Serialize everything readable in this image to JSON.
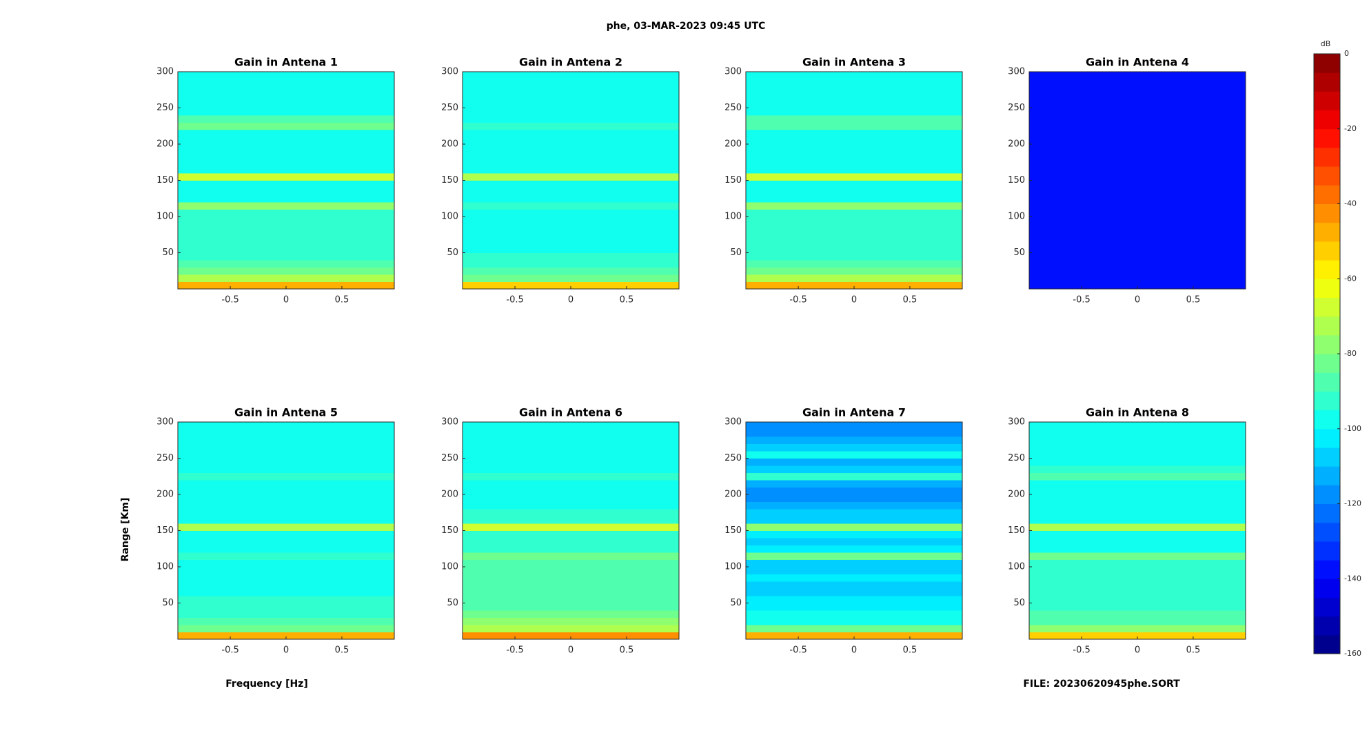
{
  "title": "phe, 03-MAR-2023 09:45 UTC",
  "ylabel": "Range [Km]",
  "xlabel": "Frequency [Hz]",
  "file_label": "FILE: 20230620945phe.SORT",
  "colorbar": {
    "label": "dB",
    "lim": [
      -160,
      0
    ],
    "ticks": [
      0,
      -20,
      -40,
      -60,
      -80,
      -100,
      -120,
      -140,
      -160
    ],
    "levels": 32,
    "colormap": [
      "#00007f",
      "#0000ff",
      "#007fff",
      "#00ffff",
      "#7fff7f",
      "#ffff00",
      "#ff7f00",
      "#ff0000",
      "#7f0000"
    ]
  },
  "chart_data": [
    {
      "type": "heatmap",
      "title": "Gain in Antena 1",
      "xlim": [
        -0.97,
        0.97
      ],
      "xticks": [
        -0.5,
        0,
        0.5
      ],
      "ylim": [
        0,
        300
      ],
      "yticks": [
        50,
        100,
        150,
        200,
        250,
        300
      ],
      "values": [
        -50,
        -75,
        -85,
        -90,
        -92,
        -94,
        -95,
        -95,
        -95,
        -95,
        -95,
        -78,
        -96,
        -96,
        -96,
        -70,
        -97,
        -97,
        -97,
        -97,
        -97,
        -97,
        -84,
        -86,
        -98,
        -98,
        -98,
        -98,
        -98,
        -98
      ]
    },
    {
      "type": "heatmap",
      "title": "Gain in Antena 2",
      "xlim": [
        -0.97,
        0.97
      ],
      "xticks": [
        -0.5,
        0,
        0.5
      ],
      "ylim": [
        0,
        300
      ],
      "yticks": [
        50,
        100,
        150,
        200,
        250,
        300
      ],
      "values": [
        -52,
        -82,
        -90,
        -93,
        -95,
        -96,
        -97,
        -97,
        -97,
        -97,
        -97,
        -92,
        -97,
        -97,
        -97,
        -72,
        -98,
        -98,
        -98,
        -98,
        -98,
        -98,
        -94,
        -96,
        -99,
        -99,
        -99,
        -99,
        -99,
        -99
      ]
    },
    {
      "type": "heatmap",
      "title": "Gain in Antena 3",
      "xlim": [
        -0.97,
        0.97
      ],
      "xticks": [
        -0.5,
        0,
        0.5
      ],
      "ylim": [
        0,
        300
      ],
      "yticks": [
        50,
        100,
        150,
        200,
        250,
        300
      ],
      "values": [
        -48,
        -74,
        -84,
        -90,
        -92,
        -94,
        -95,
        -95,
        -95,
        -95,
        -95,
        -80,
        -96,
        -96,
        -96,
        -66,
        -97,
        -97,
        -97,
        -97,
        -97,
        -97,
        -86,
        -90,
        -98,
        -98,
        -98,
        -98,
        -98,
        -98
      ]
    },
    {
      "type": "heatmap",
      "title": "Gain in Antena 4",
      "xlim": [
        -0.97,
        0.97
      ],
      "xticks": [
        -0.5,
        0,
        0.5
      ],
      "ylim": [
        0,
        300
      ],
      "yticks": [
        50,
        100,
        150,
        200,
        250,
        300
      ],
      "values": [
        -136,
        -138,
        -139,
        -139,
        -139,
        -139,
        -139,
        -139,
        -139,
        -139,
        -139,
        -139,
        -139,
        -139,
        -139,
        -138,
        -139,
        -139,
        -139,
        -139,
        -139,
        -139,
        -139,
        -139,
        -139,
        -139,
        -139,
        -139,
        -139,
        -139
      ]
    },
    {
      "type": "heatmap",
      "title": "Gain in Antena 5",
      "xlim": [
        -0.97,
        0.97
      ],
      "xticks": [
        -0.5,
        0,
        0.5
      ],
      "ylim": [
        0,
        300
      ],
      "yticks": [
        50,
        100,
        150,
        200,
        250,
        300
      ],
      "values": [
        -50,
        -84,
        -90,
        -93,
        -94,
        -95,
        -96,
        -96,
        -96,
        -96,
        -96,
        -94,
        -97,
        -97,
        -97,
        -74,
        -98,
        -98,
        -98,
        -98,
        -98,
        -98,
        -95,
        -97,
        -98,
        -98,
        -98,
        -98,
        -98,
        -98
      ]
    },
    {
      "type": "heatmap",
      "title": "Gain in Antena 6",
      "xlim": [
        -0.97,
        0.97
      ],
      "xticks": [
        -0.5,
        0,
        0.5
      ],
      "ylim": [
        0,
        300
      ],
      "yticks": [
        50,
        100,
        150,
        200,
        250,
        300
      ],
      "values": [
        -45,
        -72,
        -80,
        -84,
        -86,
        -87,
        -88,
        -88,
        -88,
        -89,
        -90,
        -84,
        -92,
        -93,
        -93,
        -70,
        -95,
        -95,
        -96,
        -96,
        -96,
        -96,
        -94,
        -96,
        -97,
        -97,
        -97,
        -97,
        -97,
        -97
      ]
    },
    {
      "type": "heatmap",
      "title": "Gain in Antena 7",
      "xlim": [
        -0.97,
        0.97
      ],
      "xticks": [
        -0.5,
        0,
        0.5
      ],
      "ylim": [
        0,
        300
      ],
      "yticks": [
        50,
        100,
        150,
        200,
        250,
        300
      ],
      "values": [
        -50,
        -82,
        -96,
        -100,
        -102,
        -104,
        -106,
        -106,
        -104,
        -106,
        -106,
        -82,
        -104,
        -106,
        -104,
        -80,
        -108,
        -110,
        -114,
        -116,
        -118,
        -112,
        -92,
        -106,
        -112,
        -100,
        -108,
        -114,
        -118,
        -116
      ]
    },
    {
      "type": "heatmap",
      "title": "Gain in Antena 8",
      "xlim": [
        -0.97,
        0.97
      ],
      "xticks": [
        -0.5,
        0,
        0.5
      ],
      "ylim": [
        0,
        300
      ],
      "yticks": [
        50,
        100,
        150,
        200,
        250,
        300
      ],
      "values": [
        -52,
        -76,
        -86,
        -90,
        -92,
        -94,
        -95,
        -95,
        -95,
        -95,
        -95,
        -84,
        -96,
        -96,
        -96,
        -72,
        -97,
        -97,
        -97,
        -97,
        -97,
        -97,
        -88,
        -92,
        -98,
        -98,
        -98,
        -98,
        -98,
        -98
      ]
    }
  ]
}
